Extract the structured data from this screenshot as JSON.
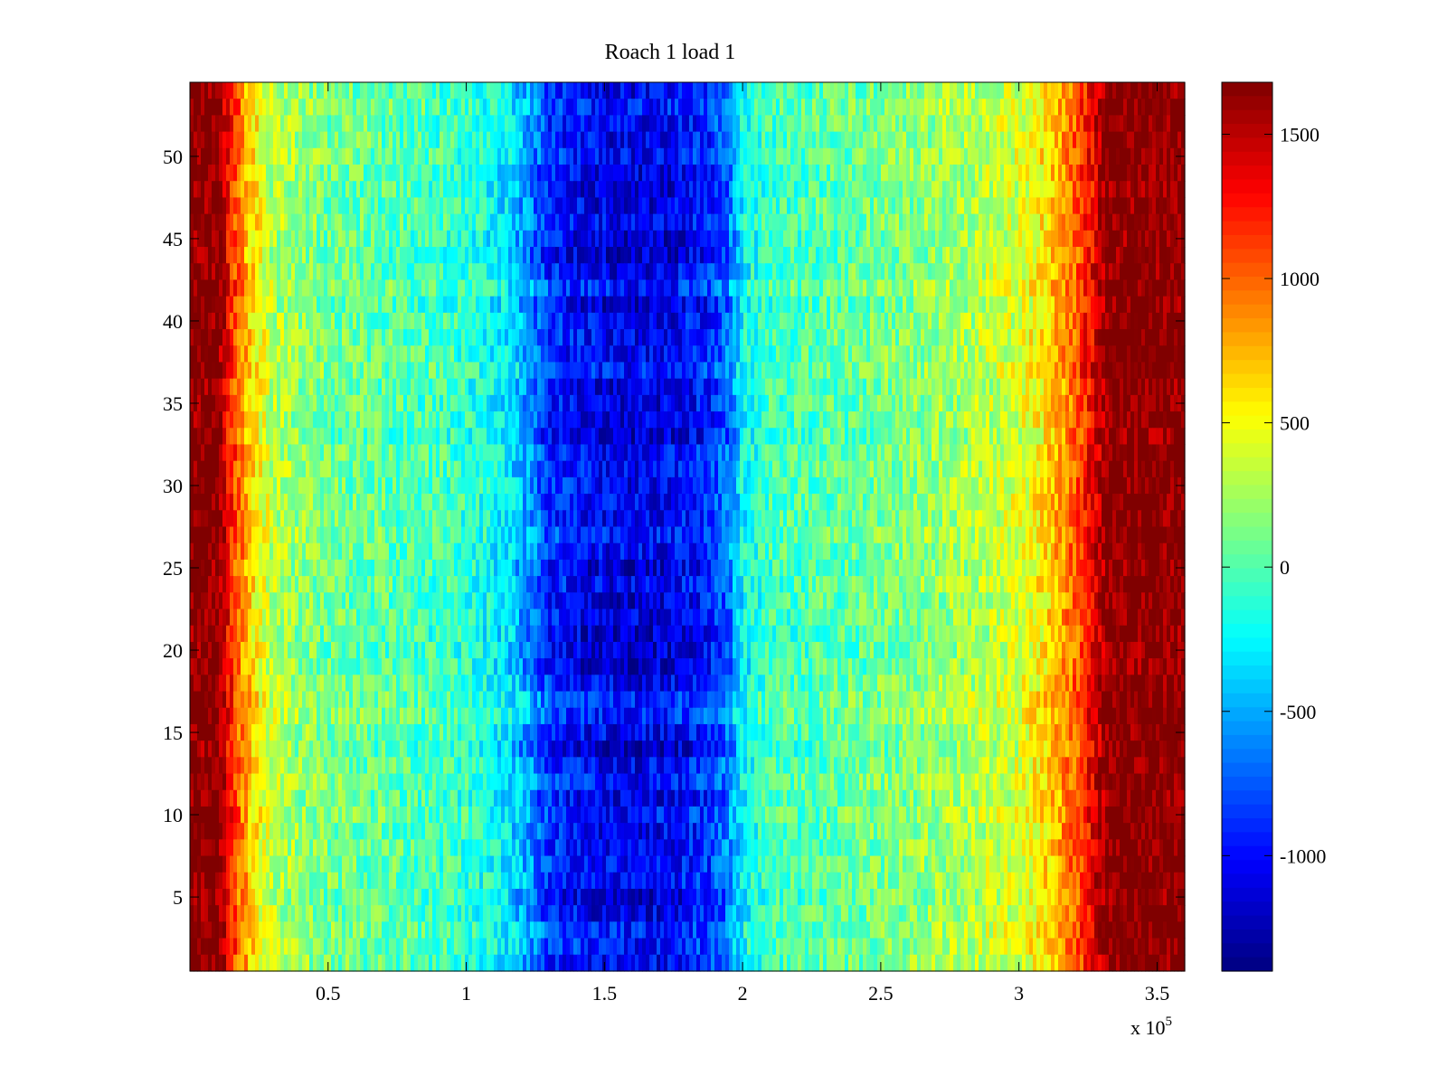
{
  "chart_data": {
    "type": "heatmap",
    "title": "Roach 1 load 1",
    "xlabel": "",
    "ylabel": "",
    "x_multiplier_text": "x 10",
    "x_multiplier_exponent": "5",
    "xlim": [
      0,
      3.6
    ],
    "ylim": [
      0.5,
      54.5
    ],
    "x_ticks": [
      0.5,
      1,
      1.5,
      2,
      2.5,
      3,
      3.5
    ],
    "x_tick_labels": [
      "0.5",
      "1",
      "1.5",
      "2",
      "2.5",
      "3",
      "3.5"
    ],
    "y_ticks": [
      5,
      10,
      15,
      20,
      25,
      30,
      35,
      40,
      45,
      50
    ],
    "y_tick_labels": [
      "5",
      "10",
      "15",
      "20",
      "25",
      "30",
      "35",
      "40",
      "45",
      "50"
    ],
    "rows": 54,
    "colormap": "jet",
    "clim": [
      -1400,
      1680
    ],
    "colorbar_ticks": [
      1500,
      1000,
      500,
      0,
      -500,
      -1000
    ],
    "colorbar_tick_labels": [
      "1500",
      "1000",
      "500",
      "0",
      "-500",
      "-1000"
    ],
    "profile_x": [
      0.0,
      0.1,
      0.15,
      0.22,
      0.3,
      0.5,
      0.8,
      1.0,
      1.15,
      1.22,
      1.3,
      1.45,
      1.6,
      1.75,
      1.88,
      1.95,
      2.0,
      2.1,
      2.5,
      2.8,
      3.0,
      3.1,
      3.2,
      3.28,
      3.32,
      3.6
    ],
    "profile_values": [
      1700,
      1700,
      1200,
      650,
      300,
      100,
      0,
      -100,
      -300,
      -550,
      -900,
      -1050,
      -1100,
      -1050,
      -900,
      -650,
      -250,
      -50,
      100,
      250,
      400,
      600,
      1000,
      1400,
      1700,
      1700
    ],
    "noise_amplitude": 260,
    "grid": false
  }
}
